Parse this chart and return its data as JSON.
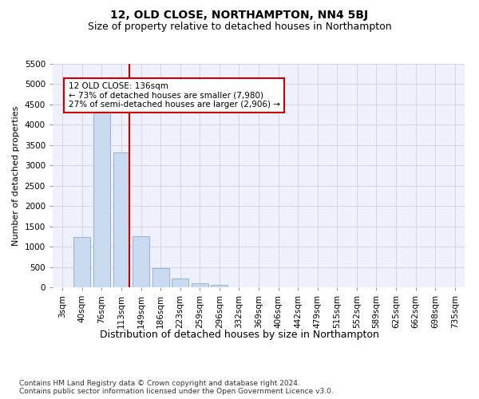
{
  "title": "12, OLD CLOSE, NORTHAMPTON, NN4 5BJ",
  "subtitle": "Size of property relative to detached houses in Northampton",
  "xlabel": "Distribution of detached houses by size in Northampton",
  "ylabel": "Number of detached properties",
  "categories": [
    "3sqm",
    "40sqm",
    "76sqm",
    "113sqm",
    "149sqm",
    "186sqm",
    "223sqm",
    "259sqm",
    "296sqm",
    "332sqm",
    "369sqm",
    "406sqm",
    "442sqm",
    "479sqm",
    "515sqm",
    "552sqm",
    "589sqm",
    "625sqm",
    "662sqm",
    "698sqm",
    "735sqm"
  ],
  "values": [
    0,
    1230,
    4330,
    3320,
    1260,
    480,
    210,
    100,
    65,
    0,
    0,
    0,
    0,
    0,
    0,
    0,
    0,
    0,
    0,
    0,
    0
  ],
  "bar_color": "#c9d9f0",
  "bar_edge_color": "#7aa0cc",
  "vline_color": "#cc0000",
  "annotation_line1": "12 OLD CLOSE: 136sqm",
  "annotation_line2": "← 73% of detached houses are smaller (7,980)",
  "annotation_line3": "27% of semi-detached houses are larger (2,906) →",
  "ylim": [
    0,
    5500
  ],
  "yticks": [
    0,
    500,
    1000,
    1500,
    2000,
    2500,
    3000,
    3500,
    4000,
    4500,
    5000,
    5500
  ],
  "grid_color": "#cccccc",
  "background_color": "#eef0fb",
  "footer": "Contains HM Land Registry data © Crown copyright and database right 2024.\nContains public sector information licensed under the Open Government Licence v3.0.",
  "title_fontsize": 10,
  "subtitle_fontsize": 9,
  "xlabel_fontsize": 9,
  "ylabel_fontsize": 8,
  "tick_fontsize": 7.5,
  "footer_fontsize": 6.5
}
